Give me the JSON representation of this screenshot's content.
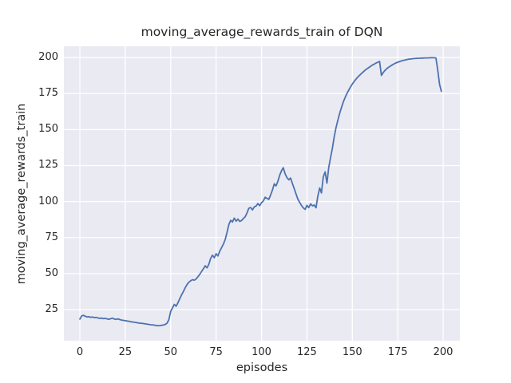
{
  "chart_data": {
    "type": "line",
    "title": "moving_average_rewards_train of DQN",
    "xlabel": "episodes",
    "ylabel": "moving_average_rewards_train",
    "x_ticks": [
      0,
      25,
      50,
      75,
      100,
      125,
      150,
      175,
      200
    ],
    "y_ticks": [
      25,
      50,
      75,
      100,
      125,
      150,
      175,
      200
    ],
    "xlim": [
      -8.8,
      209.2
    ],
    "ylim": [
      3.4,
      207.8
    ],
    "grid": true,
    "legend": null,
    "x_start": 0,
    "x_step": 1,
    "num_points": 200,
    "style": {
      "figure_bg": "#FFFFFF",
      "axes_bg": "#EAEAF2",
      "grid_color": "#FFFFFF",
      "text_color": "#262626"
    },
    "series": [
      {
        "name": "moving_average_rewards_train",
        "color": "#4C72B0",
        "values": [
          18.4,
          20.6,
          21.0,
          20.4,
          19.9,
          20.1,
          19.6,
          19.9,
          19.4,
          19.6,
          19.2,
          18.9,
          19.1,
          18.7,
          18.9,
          18.5,
          18.3,
          18.7,
          19.0,
          18.4,
          18.2,
          18.6,
          18.1,
          17.7,
          17.5,
          17.3,
          17.1,
          16.9,
          16.6,
          16.4,
          16.2,
          16.0,
          15.8,
          15.6,
          15.5,
          15.3,
          15.1,
          14.9,
          14.7,
          14.5,
          14.4,
          14.2,
          14.0,
          13.8,
          13.9,
          14.1,
          14.3,
          14.7,
          15.6,
          18.0,
          23.8,
          26.2,
          28.6,
          27.4,
          29.8,
          32.6,
          35.2,
          37.6,
          40.2,
          42.4,
          44.0,
          45.0,
          45.8,
          45.4,
          46.3,
          47.8,
          49.5,
          51.5,
          53.3,
          55.4,
          54.0,
          56.5,
          60.5,
          62.8,
          61.0,
          63.8,
          62.2,
          65.5,
          68.0,
          70.5,
          73.5,
          78.5,
          84.0,
          87.0,
          85.8,
          88.5,
          86.4,
          87.8,
          86.2,
          86.8,
          88.2,
          89.5,
          92.0,
          95.3,
          95.9,
          94.2,
          96.3,
          96.9,
          98.6,
          97.1,
          99.2,
          100.4,
          103.0,
          102.2,
          101.5,
          104.5,
          108.0,
          112.3,
          110.8,
          114.0,
          118.3,
          121.4,
          123.5,
          119.2,
          116.6,
          115.1,
          116.3,
          112.6,
          109.0,
          105.2,
          101.8,
          99.4,
          97.3,
          95.6,
          94.6,
          97.4,
          95.8,
          98.4,
          97.0,
          97.6,
          95.7,
          103.8,
          109.4,
          106.0,
          117.2,
          120.6,
          112.8,
          123.5,
          130.5,
          137.0,
          145.0,
          151.2,
          156.4,
          161.2,
          165.3,
          169.0,
          172.2,
          175.0,
          177.4,
          179.6,
          181.6,
          183.4,
          185.0,
          186.4,
          187.7,
          188.9,
          190.0,
          191.1,
          192.1,
          193.0,
          193.9,
          194.7,
          195.4,
          196.1,
          196.7,
          197.3,
          187.6,
          189.6,
          191.1,
          192.3,
          193.3,
          194.1,
          194.9,
          195.6,
          196.2,
          196.7,
          197.2,
          197.6,
          198.0,
          198.3,
          198.6,
          198.8,
          199.0,
          199.1,
          199.3,
          199.4,
          199.5,
          199.5,
          199.6,
          199.6,
          199.7,
          199.7,
          199.7,
          199.8,
          199.8,
          199.8,
          199.6,
          191.5,
          181.5,
          176.5
        ]
      }
    ]
  }
}
